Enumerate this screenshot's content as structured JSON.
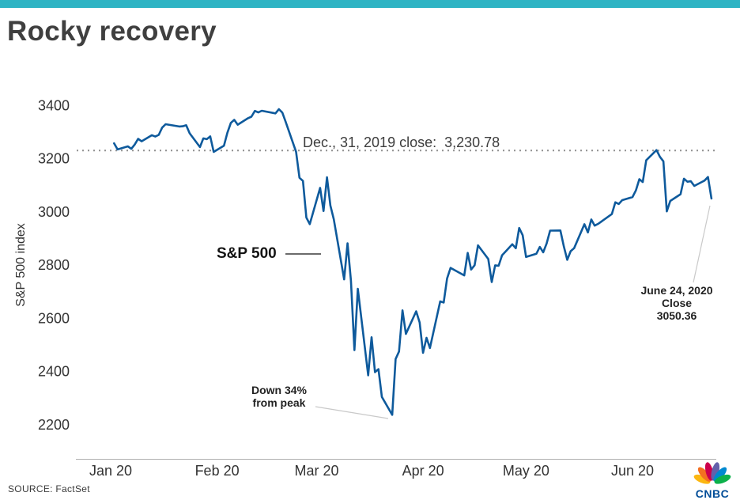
{
  "header": {
    "title": "Rocky recovery"
  },
  "footer": {
    "source": "SOURCE: FactSet",
    "logo_text": "CNBC"
  },
  "colors": {
    "accent_bar": "#2eb4c4",
    "line": "#0e5a9c",
    "reference_line": "#909090",
    "axis_text": "#333333",
    "cnbc_blue": "#004c97",
    "peacock": [
      "#fcb711",
      "#f37021",
      "#cc004c",
      "#6460aa",
      "#0089d0",
      "#0db14b"
    ]
  },
  "chart_data": {
    "type": "line",
    "title": "Rocky recovery",
    "xlabel": "",
    "ylabel": "S&P 500 index",
    "ylim": [
      2200,
      3400
    ],
    "grid": false,
    "legend": "none",
    "y_ticks": [
      2200,
      2400,
      2600,
      2800,
      3000,
      3200,
      3400
    ],
    "x_ticks": [
      {
        "label": "Jan 20",
        "date": "01-01"
      },
      {
        "label": "Feb 20",
        "date": "02-01"
      },
      {
        "label": "Mar 20",
        "date": "03-01"
      },
      {
        "label": "Apr 20",
        "date": "04-01"
      },
      {
        "label": "May 20",
        "date": "05-01"
      },
      {
        "label": "Jun 20",
        "date": "06-01"
      }
    ],
    "reference_line": {
      "value": 3230.78,
      "style": "dotted"
    },
    "annotations": {
      "dec_close": {
        "text": "Dec., 31, 2019 close:  3,230.78"
      },
      "series_label": {
        "text": "S&P 500"
      },
      "down_peak": {
        "line1": "Down 34%",
        "line2": "from peak"
      },
      "june_close": {
        "line1": "June 24, 2020",
        "line2": "Close",
        "line3": "3050.36"
      }
    },
    "series": [
      {
        "name": "S&P 500",
        "year": 2020,
        "dates": [
          "01-02",
          "01-03",
          "01-06",
          "01-07",
          "01-08",
          "01-09",
          "01-10",
          "01-13",
          "01-14",
          "01-15",
          "01-16",
          "01-17",
          "01-21",
          "01-22",
          "01-23",
          "01-24",
          "01-27",
          "01-28",
          "01-29",
          "01-30",
          "01-31",
          "02-03",
          "02-04",
          "02-05",
          "02-06",
          "02-07",
          "02-10",
          "02-11",
          "02-12",
          "02-13",
          "02-14",
          "02-18",
          "02-19",
          "02-20",
          "02-21",
          "02-24",
          "02-25",
          "02-26",
          "02-27",
          "02-28",
          "03-02",
          "03-03",
          "03-04",
          "03-05",
          "03-06",
          "03-09",
          "03-10",
          "03-11",
          "03-12",
          "03-13",
          "03-16",
          "03-17",
          "03-18",
          "03-19",
          "03-20",
          "03-23",
          "03-24",
          "03-25",
          "03-26",
          "03-27",
          "03-30",
          "03-31",
          "04-01",
          "04-02",
          "04-03",
          "04-06",
          "04-07",
          "04-08",
          "04-09",
          "04-13",
          "04-14",
          "04-15",
          "04-16",
          "04-17",
          "04-20",
          "04-21",
          "04-22",
          "04-23",
          "04-24",
          "04-27",
          "04-28",
          "04-29",
          "04-30",
          "05-01",
          "05-04",
          "05-05",
          "05-06",
          "05-07",
          "05-08",
          "05-11",
          "05-12",
          "05-13",
          "05-14",
          "05-15",
          "05-18",
          "05-19",
          "05-20",
          "05-21",
          "05-22",
          "05-26",
          "05-27",
          "05-28",
          "05-29",
          "06-01",
          "06-02",
          "06-03",
          "06-04",
          "06-05",
          "06-08",
          "06-09",
          "06-10",
          "06-11",
          "06-12",
          "06-15",
          "06-16",
          "06-17",
          "06-18",
          "06-19",
          "06-22",
          "06-23",
          "06-24"
        ],
        "values": [
          3257.85,
          3234.85,
          3246.28,
          3237.18,
          3253.05,
          3274.7,
          3265.35,
          3288.13,
          3283.15,
          3289.29,
          3316.81,
          3329.62,
          3320.79,
          3321.75,
          3325.54,
          3295.47,
          3243.63,
          3276.24,
          3273.4,
          3283.66,
          3225.52,
          3248.92,
          3297.59,
          3334.69,
          3345.78,
          3327.71,
          3352.09,
          3357.75,
          3379.45,
          3373.94,
          3380.16,
          3370.29,
          3386.15,
          3373.23,
          3337.75,
          3225.89,
          3128.21,
          3116.39,
          2978.76,
          2954.22,
          3090.23,
          3003.37,
          3130.12,
          3023.94,
          2972.37,
          2746.56,
          2882.23,
          2741.38,
          2480.64,
          2711.02,
          2386.13,
          2529.19,
          2398.1,
          2409.39,
          2304.92,
          2237.4,
          2447.33,
          2475.56,
          2630.07,
          2541.47,
          2626.65,
          2584.59,
          2470.5,
          2526.9,
          2488.65,
          2663.68,
          2659.41,
          2749.98,
          2789.82,
          2761.63,
          2846.06,
          2783.36,
          2799.55,
          2874.56,
          2823.16,
          2736.56,
          2799.31,
          2797.8,
          2836.74,
          2878.48,
          2863.39,
          2939.51,
          2912.43,
          2830.71,
          2842.74,
          2868.44,
          2848.42,
          2881.19,
          2929.8,
          2930.32,
          2870.12,
          2820.0,
          2852.5,
          2863.7,
          2953.91,
          2922.94,
          2971.61,
          2948.51,
          2955.45,
          2991.77,
          3036.13,
          3029.73,
          3044.31,
          3055.73,
          3080.82,
          3122.87,
          3112.35,
          3193.93,
          3232.39,
          3207.18,
          3190.14,
          3002.1,
          3041.31,
          3066.59,
          3124.74,
          3113.49,
          3115.34,
          3097.74,
          3117.86,
          3131.29,
          3050.36
        ]
      }
    ]
  }
}
